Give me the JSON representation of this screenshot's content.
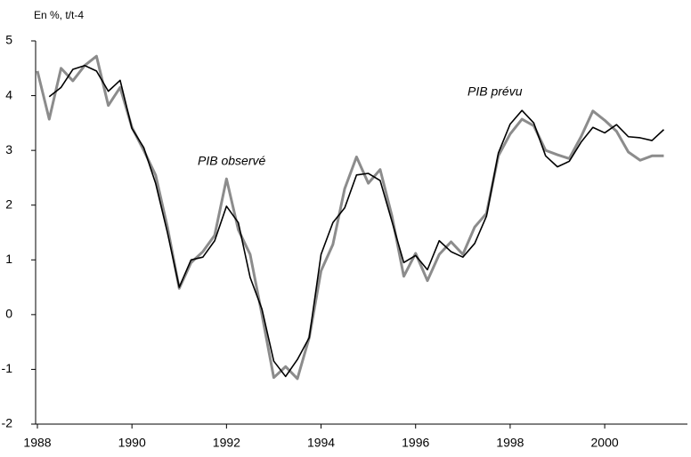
{
  "chart_data": {
    "type": "line",
    "y_axis_label": "En %, t/t-4",
    "annotations": [
      "PIB observé",
      "PIB prévu"
    ],
    "x": [
      1988,
      1988.25,
      1988.5,
      1988.75,
      1989,
      1989.25,
      1989.5,
      1989.75,
      1990,
      1990.25,
      1990.5,
      1990.75,
      1991,
      1991.25,
      1991.5,
      1991.75,
      1992,
      1992.25,
      1992.5,
      1992.75,
      1993,
      1993.25,
      1993.5,
      1993.75,
      1994,
      1994.25,
      1994.5,
      1994.75,
      1995,
      1995.25,
      1995.5,
      1995.75,
      1996,
      1996.25,
      1996.5,
      1996.75,
      1997,
      1997.25,
      1997.5,
      1997.75,
      1998,
      1998.25,
      1998.5,
      1998.75,
      1999,
      1999.25,
      1999.5,
      1999.75,
      2000,
      2000.25,
      2000.5,
      2000.75,
      2001,
      2001.25
    ],
    "series": [
      {
        "name": "PIB observé",
        "color": "#8c8c8c",
        "width": 3,
        "values": [
          4.45,
          3.57,
          4.5,
          4.27,
          4.55,
          4.72,
          3.82,
          4.15,
          3.42,
          3.0,
          2.55,
          1.6,
          0.48,
          0.95,
          1.15,
          1.45,
          2.48,
          1.55,
          1.1,
          0.0,
          -1.15,
          -0.95,
          -1.17,
          -0.42,
          0.8,
          1.28,
          2.3,
          2.88,
          2.4,
          2.65,
          1.8,
          0.7,
          1.12,
          0.62,
          1.1,
          1.33,
          1.1,
          1.6,
          1.85,
          2.9,
          3.3,
          3.57,
          3.45,
          3.0,
          2.92,
          2.85,
          3.25,
          3.72,
          3.55,
          3.35,
          2.97,
          2.82,
          2.9,
          2.9
        ]
      },
      {
        "name": "PIB prévu",
        "color": "#000000",
        "width": 1.6,
        "values": [
          null,
          3.98,
          4.15,
          4.48,
          4.55,
          4.45,
          4.08,
          4.28,
          3.4,
          3.05,
          2.4,
          1.5,
          0.5,
          1.0,
          1.05,
          1.35,
          1.98,
          1.68,
          0.68,
          0.1,
          -0.85,
          -1.13,
          -0.82,
          -0.42,
          1.1,
          1.68,
          1.95,
          2.55,
          2.58,
          2.45,
          1.7,
          0.95,
          1.08,
          0.82,
          1.35,
          1.15,
          1.05,
          1.3,
          1.8,
          2.95,
          3.48,
          3.73,
          3.5,
          2.9,
          2.7,
          2.8,
          3.15,
          3.42,
          3.32,
          3.47,
          3.25,
          3.23,
          3.18,
          3.38
        ]
      }
    ],
    "xlim": [
      1988,
      2001.75
    ],
    "xticks": [
      1988,
      1990,
      1992,
      1994,
      1996,
      1998,
      2000
    ],
    "ylim": [
      -2,
      5
    ],
    "yticks": [
      -2,
      -1,
      0,
      1,
      2,
      3,
      4,
      5
    ],
    "grid": false
  }
}
